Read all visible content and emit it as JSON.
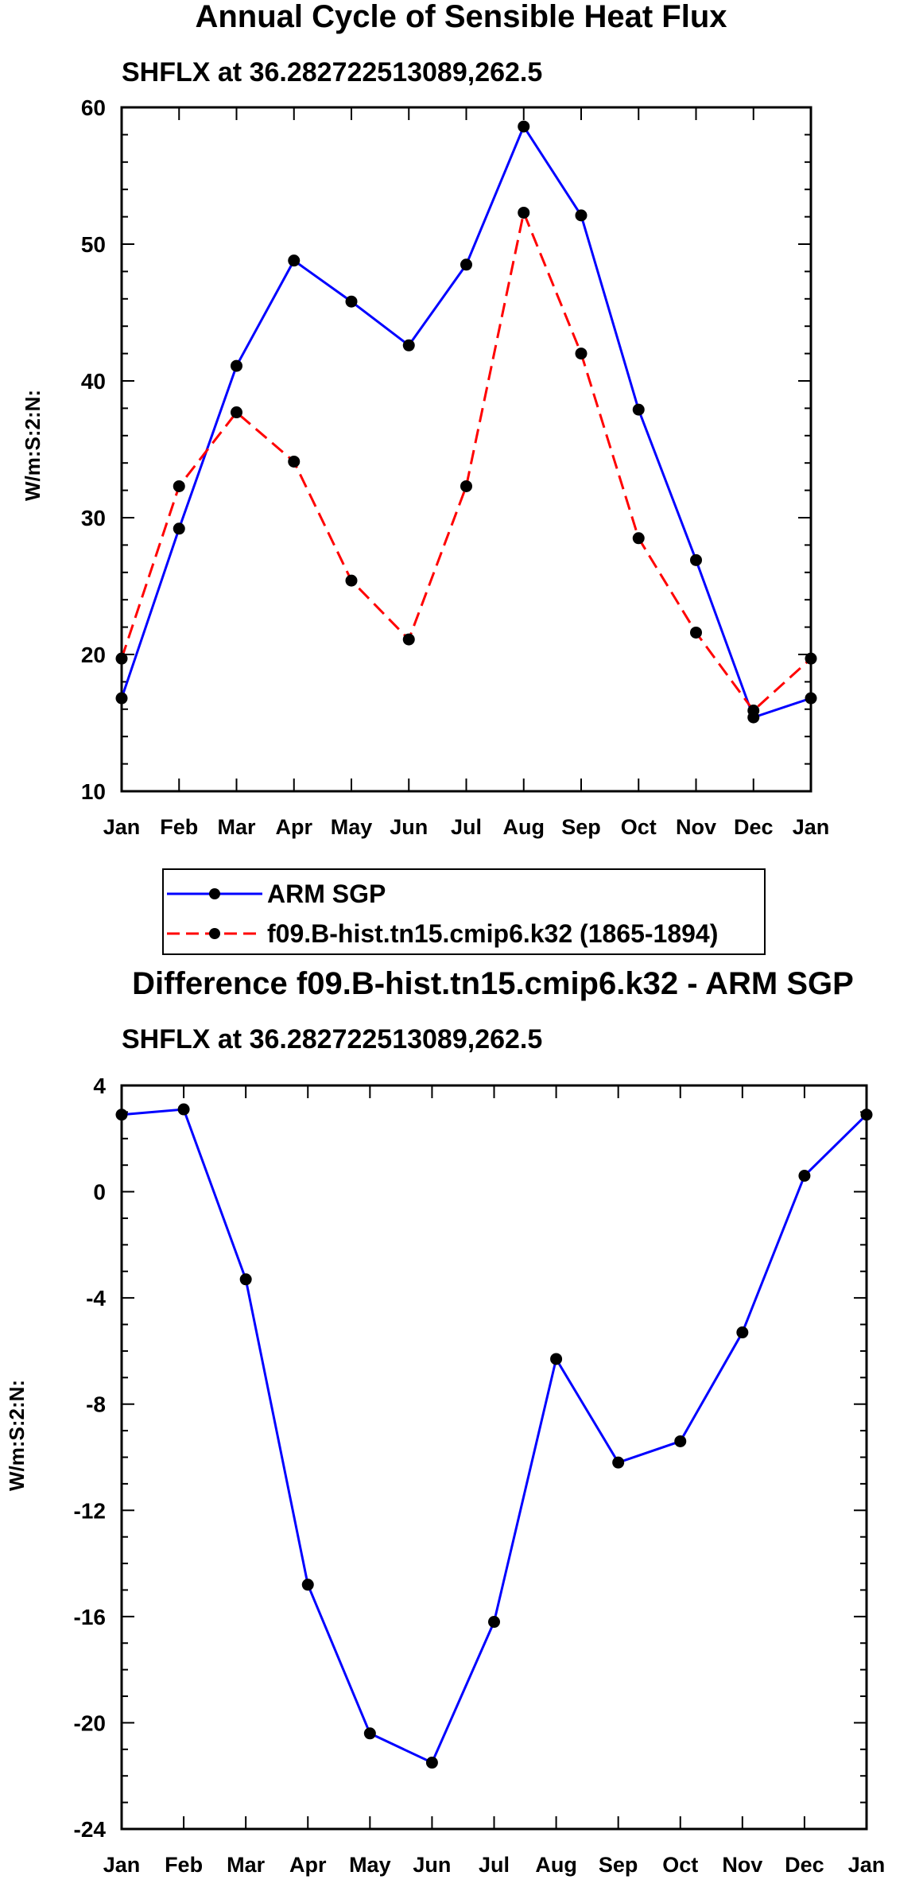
{
  "colors": {
    "arm": "#0000ff",
    "model": "#ff0000",
    "marker": "#000000",
    "axis": "#000000"
  },
  "chart_data": [
    {
      "type": "line",
      "title": "Annual Cycle of Sensible Heat Flux",
      "subtitle": "SHFLX at 36.282722513089,262.5",
      "ylabel": "W/m:S:2:N:",
      "xlabel": "",
      "categories": [
        "Jan",
        "Feb",
        "Mar",
        "Apr",
        "May",
        "Jun",
        "Jul",
        "Aug",
        "Sep",
        "Oct",
        "Nov",
        "Dec",
        "Jan"
      ],
      "ylim": [
        10,
        60
      ],
      "yticks": [
        10,
        20,
        30,
        40,
        50,
        60
      ],
      "series": [
        {
          "name": "ARM SGP",
          "style": "solid",
          "color": "#0000ff",
          "values": [
            16.8,
            29.2,
            41.1,
            48.8,
            45.8,
            42.6,
            48.5,
            58.6,
            52.1,
            37.9,
            26.9,
            15.4,
            16.8
          ]
        },
        {
          "name": "f09.B-hist.tn15.cmip6.k32 (1865-1894)",
          "style": "dashed",
          "color": "#ff0000",
          "values": [
            19.7,
            32.3,
            37.7,
            34.1,
            25.4,
            21.1,
            32.3,
            52.3,
            42.0,
            28.5,
            21.6,
            15.9,
            19.7
          ]
        }
      ],
      "legend": {
        "position": "bottom-left",
        "entries": [
          "ARM SGP",
          "f09.B-hist.tn15.cmip6.k32 (1865-1894)"
        ]
      }
    },
    {
      "type": "line",
      "title": "Difference f09.B-hist.tn15.cmip6.k32 - ARM SGP",
      "subtitle": "SHFLX at 36.282722513089,262.5",
      "ylabel": "W/m:S:2:N:",
      "xlabel": "",
      "categories": [
        "Jan",
        "Feb",
        "Mar",
        "Apr",
        "May",
        "Jun",
        "Jul",
        "Aug",
        "Sep",
        "Oct",
        "Nov",
        "Dec",
        "Jan"
      ],
      "ylim": [
        -24,
        4
      ],
      "yticks": [
        -24,
        -20,
        -16,
        -12,
        -8,
        -4,
        0,
        4
      ],
      "series": [
        {
          "name": "Difference",
          "style": "solid",
          "color": "#0000ff",
          "values": [
            2.9,
            3.1,
            -3.3,
            -14.8,
            -20.4,
            -21.5,
            -16.2,
            -6.3,
            -10.2,
            -9.4,
            -5.3,
            0.6,
            2.9
          ]
        }
      ]
    }
  ]
}
